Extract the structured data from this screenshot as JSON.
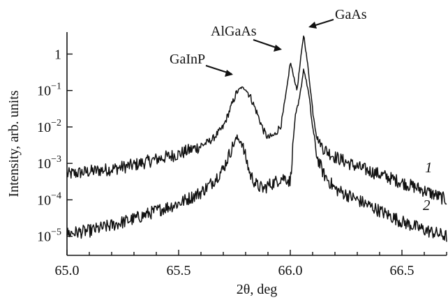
{
  "chart_data": {
    "type": "line",
    "title": "",
    "xlabel": "2θ, deg",
    "ylabel": "Intensity, arb. units",
    "xlim": [
      65.0,
      66.7
    ],
    "ylim": [
      3e-06,
      4
    ],
    "y_scale": "log",
    "grid": false,
    "x_ticks": [
      65.0,
      65.5,
      66.0,
      66.5
    ],
    "x_tick_labels": [
      "65.0",
      "65.5",
      "66.0",
      "66.5"
    ],
    "y_ticks": [
      1e-05,
      0.0001,
      0.001,
      0.01,
      0.1,
      1
    ],
    "y_tick_labels": [
      {
        "base": "10",
        "exp": "−5"
      },
      {
        "base": "10",
        "exp": "−4"
      },
      {
        "base": "10",
        "exp": "−3"
      },
      {
        "base": "10",
        "exp": "−2"
      },
      {
        "base": "10",
        "exp": "−1"
      },
      {
        "base": "1",
        "exp": ""
      }
    ],
    "series": [
      {
        "name": "1",
        "x": [
          65.0,
          65.1,
          65.2,
          65.3,
          65.4,
          65.5,
          65.6,
          65.65,
          65.7,
          65.73,
          65.76,
          65.78,
          65.8,
          65.82,
          65.85,
          65.88,
          65.9,
          65.93,
          65.96,
          65.98,
          66.0,
          66.015,
          66.03,
          66.045,
          66.06,
          66.08,
          66.1,
          66.12,
          66.15,
          66.2,
          66.3,
          66.4,
          66.5,
          66.6,
          66.7
        ],
        "y": [
          0.0005,
          0.0006,
          0.0007,
          0.0009,
          0.0013,
          0.0018,
          0.003,
          0.0045,
          0.01,
          0.03,
          0.09,
          0.12,
          0.11,
          0.07,
          0.025,
          0.008,
          0.005,
          0.006,
          0.012,
          0.07,
          0.6,
          0.25,
          0.1,
          0.6,
          3.5,
          0.4,
          0.03,
          0.005,
          0.0025,
          0.0015,
          0.0008,
          0.0005,
          0.0003,
          0.00018,
          0.0001
        ]
      },
      {
        "name": "2",
        "x": [
          65.0,
          65.1,
          65.2,
          65.3,
          65.4,
          65.5,
          65.6,
          65.65,
          65.7,
          65.73,
          65.76,
          65.78,
          65.8,
          65.82,
          65.85,
          65.88,
          65.9,
          65.93,
          65.96,
          65.98,
          66.0,
          66.02,
          66.04,
          66.06,
          66.08,
          66.1,
          66.12,
          66.15,
          66.2,
          66.3,
          66.4,
          66.5,
          66.6,
          66.7
        ],
        "y": [
          1.2e-05,
          1.4e-05,
          2e-05,
          3e-05,
          5e-05,
          8e-05,
          0.00016,
          0.0003,
          0.0007,
          0.002,
          0.005,
          0.004,
          0.0015,
          0.0005,
          0.00025,
          0.0002,
          0.00025,
          0.0003,
          0.0004,
          0.0004,
          0.0003,
          0.015,
          0.05,
          0.4,
          0.1,
          0.01,
          0.0015,
          0.0005,
          0.0002,
          0.0001,
          5e-05,
          2.5e-05,
          1.5e-05,
          1e-05
        ]
      }
    ],
    "annotations": [
      {
        "text": "GaInP",
        "x": 65.8,
        "y": 0.12
      },
      {
        "text": "AlGaAs",
        "x": 65.99,
        "y": 0.55
      },
      {
        "text": "GaAs",
        "x": 66.06,
        "y": 2.6
      }
    ]
  }
}
